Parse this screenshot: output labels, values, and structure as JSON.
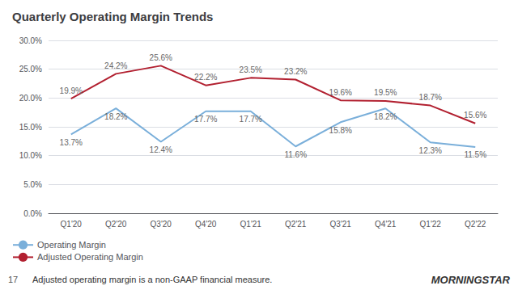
{
  "chart_data": {
    "type": "line",
    "title": "Quarterly Operating Margin Trends",
    "categories": [
      "Q1'20",
      "Q2'20",
      "Q3'20",
      "Q4'20",
      "Q1'21",
      "Q2'21",
      "Q3'21",
      "Q4'21",
      "Q1'22",
      "Q2'22"
    ],
    "series": [
      {
        "name": "Operating Margin",
        "color": "#7aafda",
        "values": [
          13.7,
          18.2,
          12.4,
          17.7,
          17.7,
          11.6,
          15.8,
          18.2,
          12.3,
          11.5
        ],
        "value_labels": [
          "13.7%",
          "18.2%",
          "12.4%",
          "17.7%",
          "17.7%",
          "11.6%",
          "15.8%",
          "18.2%",
          "12.3%",
          "11.5%"
        ]
      },
      {
        "name": "Adjusted Operating Margin",
        "color": "#b22030",
        "values": [
          19.9,
          24.2,
          25.6,
          22.2,
          23.5,
          23.2,
          19.6,
          19.5,
          18.7,
          15.6
        ],
        "value_labels": [
          "19.9%",
          "24.2%",
          "25.6%",
          "22.2%",
          "23.5%",
          "23.2%",
          "19.6%",
          "19.5%",
          "18.7%",
          "15.6%"
        ]
      }
    ],
    "ylim": [
      0,
      30
    ],
    "yticks": [
      {
        "value": 0,
        "label": "0.0%"
      },
      {
        "value": 5,
        "label": "5.0%"
      },
      {
        "value": 10,
        "label": "10.0%"
      },
      {
        "value": 15,
        "label": "15.0%"
      },
      {
        "value": 20,
        "label": "20.0%"
      },
      {
        "value": 25,
        "label": "25.0%"
      },
      {
        "value": 30,
        "label": "30.0%"
      }
    ],
    "grid": true,
    "legend": "lower left",
    "data_labels": true,
    "annotations": [
      "17",
      "Adjusted operating margin is a non-GAAP financial measure.",
      "MORNINGSTAR"
    ]
  }
}
